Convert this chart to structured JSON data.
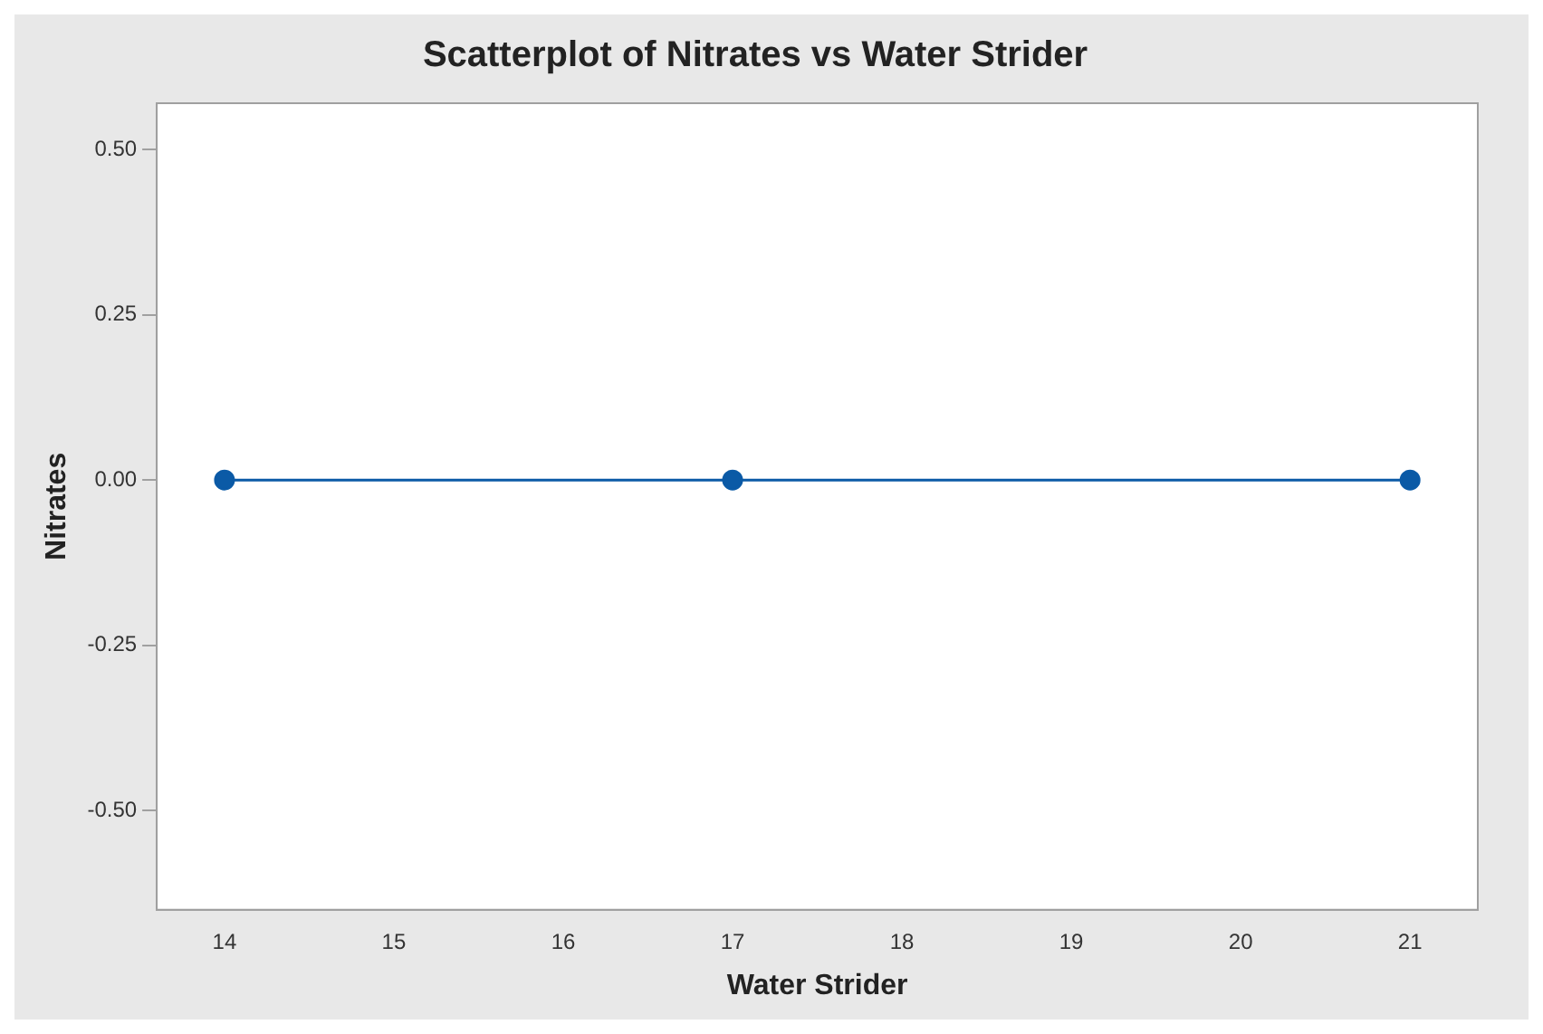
{
  "chart_data": {
    "type": "line",
    "title": "Scatterplot of Nitrates vs Water Strider",
    "xlabel": "Water Strider",
    "ylabel": "Nitrates",
    "x": [
      14,
      17,
      21
    ],
    "series": [
      {
        "color": "#0b5aa6",
        "values": [
          0,
          0,
          0
        ]
      }
    ],
    "xlim": [
      13.6,
      21.4
    ],
    "xticks": [
      14,
      15,
      16,
      17,
      18,
      19,
      20,
      21
    ],
    "ylim": [
      -0.65,
      0.57
    ],
    "yticks": [
      {
        "value": -0.5,
        "label": "-0.50"
      },
      {
        "value": -0.25,
        "label": "-0.25"
      },
      {
        "value": 0,
        "label": "0.00"
      },
      {
        "value": 0.25,
        "label": "0.25"
      },
      {
        "value": 0.5,
        "label": "0.50"
      }
    ],
    "grid": false,
    "legend": false,
    "marker": "circle",
    "line_style": "solid"
  }
}
